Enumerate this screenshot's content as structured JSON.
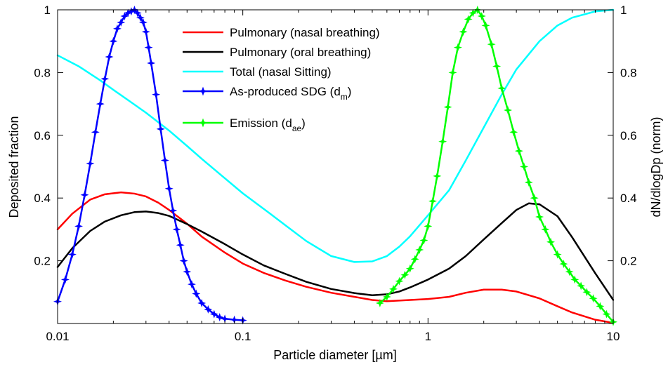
{
  "chart_data": {
    "type": "line",
    "xlabel": "Particle diameter [µm]",
    "ylabel": "Deposited fraction",
    "y2label": "dN/dlogDp (norm)",
    "x_scale": "log",
    "xlim": [
      0.01,
      10
    ],
    "ylim": [
      0,
      1
    ],
    "y2lim": [
      0,
      1
    ],
    "grid": false,
    "legend_position": "top-center",
    "x_ticks": [
      {
        "value": 0.01,
        "label": "0.01"
      },
      {
        "value": 0.1,
        "label": "0.1"
      },
      {
        "value": 1,
        "label": "1"
      },
      {
        "value": 10,
        "label": "10"
      }
    ],
    "y_ticks": [
      {
        "value": 0.2,
        "label": "0.2"
      },
      {
        "value": 0.4,
        "label": "0.4"
      },
      {
        "value": 0.6,
        "label": "0.6"
      },
      {
        "value": 0.8,
        "label": "0.8"
      },
      {
        "value": 1,
        "label": "1"
      }
    ],
    "y2_ticks": [
      {
        "value": 0.2,
        "label": "0.2"
      },
      {
        "value": 0.4,
        "label": "0.4"
      },
      {
        "value": 0.6,
        "label": "0.6"
      },
      {
        "value": 0.8,
        "label": "0.8"
      },
      {
        "value": 1,
        "label": "1"
      }
    ],
    "series": [
      {
        "name": "Pulmonary (nasal breathing)",
        "color": "#ff0000",
        "marker": "none",
        "axis": "left",
        "x": [
          0.01,
          0.012,
          0.015,
          0.018,
          0.022,
          0.026,
          0.03,
          0.035,
          0.04,
          0.05,
          0.06,
          0.08,
          0.1,
          0.13,
          0.17,
          0.22,
          0.3,
          0.4,
          0.5,
          0.6,
          0.8,
          1.0,
          1.3,
          1.6,
          2.0,
          2.5,
          3.0,
          4.0,
          5.0,
          6.0,
          8.0,
          10
        ],
        "y": [
          0.3,
          0.35,
          0.395,
          0.412,
          0.418,
          0.414,
          0.405,
          0.385,
          0.362,
          0.318,
          0.277,
          0.226,
          0.191,
          0.161,
          0.137,
          0.117,
          0.098,
          0.085,
          0.075,
          0.071,
          0.075,
          0.078,
          0.085,
          0.098,
          0.108,
          0.108,
          0.102,
          0.08,
          0.055,
          0.035,
          0.012,
          0.002
        ]
      },
      {
        "name": "Pulmonary (oral breathing)",
        "color": "#000000",
        "marker": "none",
        "axis": "left",
        "x": [
          0.01,
          0.012,
          0.015,
          0.018,
          0.022,
          0.026,
          0.03,
          0.035,
          0.04,
          0.05,
          0.06,
          0.08,
          0.1,
          0.13,
          0.17,
          0.22,
          0.3,
          0.4,
          0.5,
          0.6,
          0.7,
          0.8,
          1.0,
          1.3,
          1.6,
          2.0,
          2.5,
          3.0,
          3.5,
          4.0,
          5.0,
          6.0,
          8.0,
          10
        ],
        "y": [
          0.18,
          0.24,
          0.295,
          0.325,
          0.345,
          0.355,
          0.357,
          0.352,
          0.343,
          0.317,
          0.293,
          0.253,
          0.22,
          0.185,
          0.158,
          0.133,
          0.11,
          0.097,
          0.09,
          0.093,
          0.102,
          0.115,
          0.14,
          0.175,
          0.215,
          0.268,
          0.32,
          0.362,
          0.383,
          0.38,
          0.342,
          0.275,
          0.16,
          0.075
        ]
      },
      {
        "name": "Total (nasal Sitting)",
        "color": "#00ffff",
        "marker": "none",
        "axis": "left",
        "x": [
          0.01,
          0.013,
          0.017,
          0.02,
          0.025,
          0.03,
          0.04,
          0.05,
          0.06,
          0.08,
          0.1,
          0.13,
          0.17,
          0.22,
          0.3,
          0.4,
          0.5,
          0.6,
          0.7,
          0.8,
          1.0,
          1.3,
          1.6,
          2.0,
          2.5,
          3.0,
          4.0,
          5.0,
          6.0,
          8.0,
          10
        ],
        "y": [
          0.855,
          0.82,
          0.775,
          0.745,
          0.705,
          0.672,
          0.615,
          0.566,
          0.525,
          0.463,
          0.415,
          0.365,
          0.313,
          0.263,
          0.215,
          0.196,
          0.198,
          0.215,
          0.245,
          0.278,
          0.345,
          0.425,
          0.52,
          0.625,
          0.73,
          0.81,
          0.9,
          0.95,
          0.975,
          0.995,
          1.0
        ]
      },
      {
        "name": "As-produced SDG (d_m)",
        "legend_main": "As-produced SDG (d",
        "legend_sub": "m",
        "legend_tail": ")",
        "color": "#0000ff",
        "marker": "star",
        "axis": "right",
        "x": [
          0.01,
          0.011,
          0.012,
          0.013,
          0.014,
          0.015,
          0.016,
          0.017,
          0.018,
          0.019,
          0.02,
          0.021,
          0.022,
          0.023,
          0.024,
          0.025,
          0.026,
          0.027,
          0.028,
          0.029,
          0.03,
          0.031,
          0.032,
          0.034,
          0.036,
          0.038,
          0.04,
          0.042,
          0.044,
          0.046,
          0.048,
          0.05,
          0.053,
          0.056,
          0.06,
          0.065,
          0.07,
          0.075,
          0.08,
          0.09,
          0.1
        ],
        "y": [
          0.07,
          0.14,
          0.22,
          0.31,
          0.41,
          0.51,
          0.61,
          0.7,
          0.78,
          0.85,
          0.9,
          0.94,
          0.96,
          0.98,
          0.99,
          0.995,
          1.0,
          0.99,
          0.975,
          0.96,
          0.93,
          0.88,
          0.83,
          0.73,
          0.62,
          0.52,
          0.43,
          0.36,
          0.3,
          0.25,
          0.2,
          0.165,
          0.125,
          0.095,
          0.065,
          0.045,
          0.03,
          0.02,
          0.015,
          0.012,
          0.01
        ]
      },
      {
        "name": "Emission (d_ae)",
        "legend_main": "Emission (d",
        "legend_sub": "ae",
        "legend_tail": ")",
        "color": "#00ff00",
        "marker": "star",
        "axis": "right",
        "x": [
          0.55,
          0.6,
          0.65,
          0.7,
          0.75,
          0.8,
          0.85,
          0.9,
          0.95,
          1.0,
          1.06,
          1.12,
          1.2,
          1.28,
          1.36,
          1.45,
          1.55,
          1.65,
          1.75,
          1.85,
          1.95,
          2.05,
          2.2,
          2.35,
          2.5,
          2.7,
          2.9,
          3.1,
          3.3,
          3.5,
          3.75,
          4.0,
          4.3,
          4.6,
          5.0,
          5.4,
          5.8,
          6.2,
          6.7,
          7.2,
          7.8,
          8.5,
          9.2,
          10
        ],
        "y": [
          0.065,
          0.085,
          0.11,
          0.135,
          0.155,
          0.175,
          0.205,
          0.235,
          0.265,
          0.31,
          0.39,
          0.47,
          0.58,
          0.69,
          0.8,
          0.88,
          0.93,
          0.97,
          0.99,
          1.0,
          0.98,
          0.95,
          0.89,
          0.82,
          0.75,
          0.68,
          0.61,
          0.55,
          0.5,
          0.45,
          0.4,
          0.34,
          0.3,
          0.26,
          0.22,
          0.19,
          0.165,
          0.14,
          0.12,
          0.1,
          0.08,
          0.055,
          0.03,
          0.005
        ]
      }
    ]
  }
}
